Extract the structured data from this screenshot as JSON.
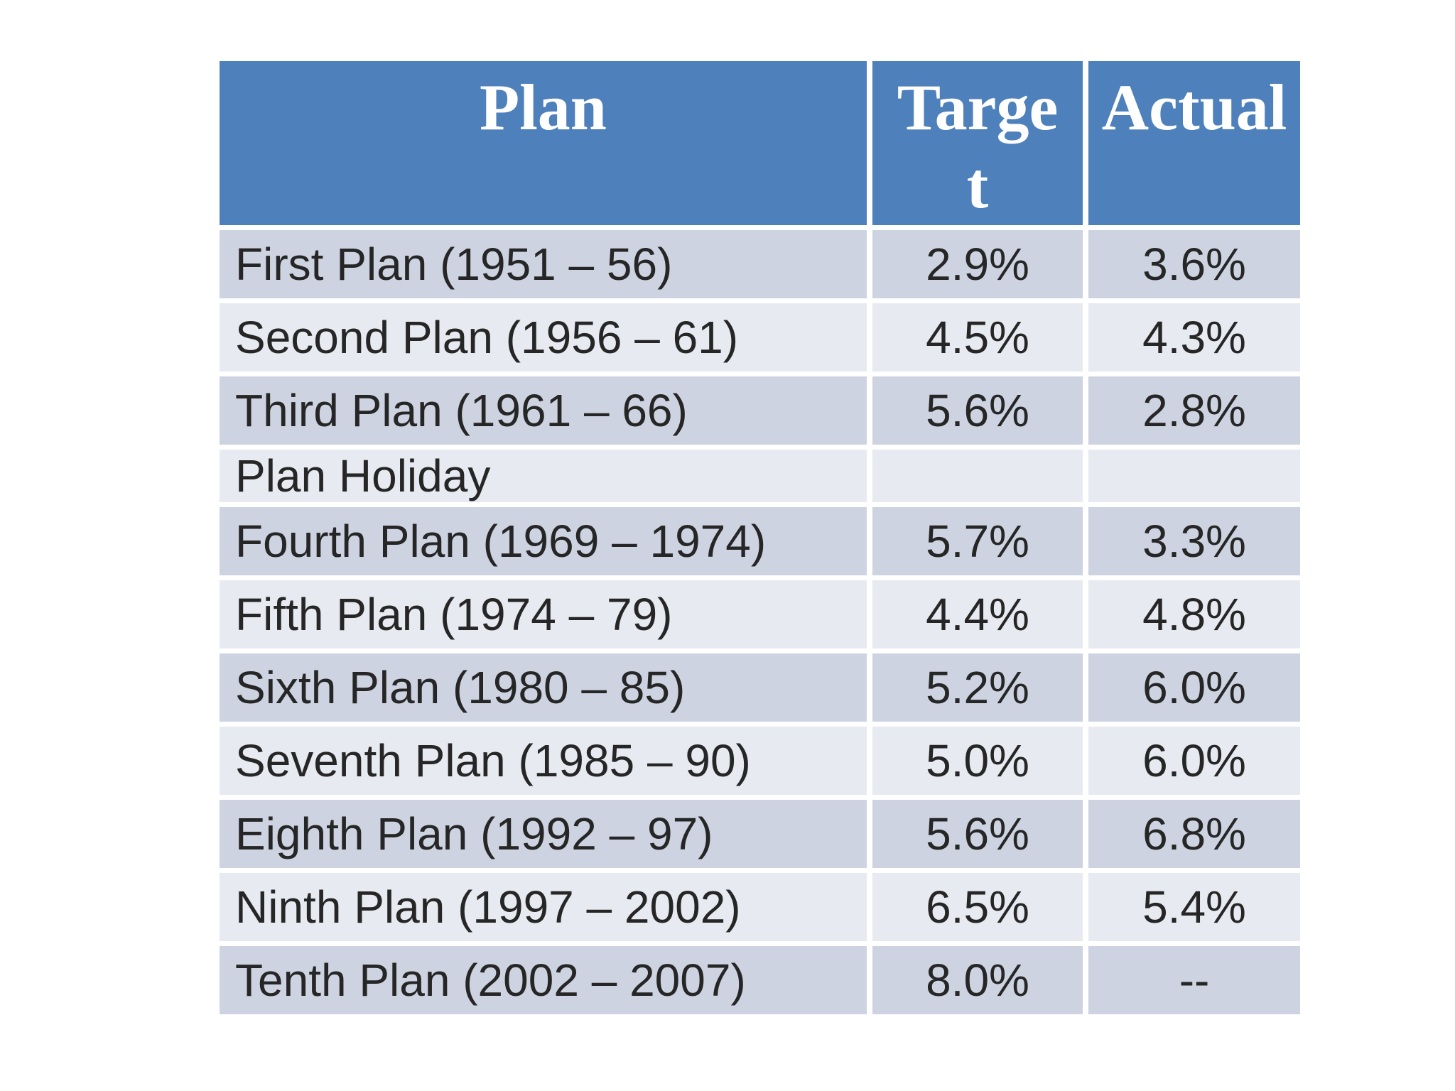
{
  "table": {
    "columns": [
      {
        "key": "plan",
        "label": "Plan"
      },
      {
        "key": "target",
        "label": "Target"
      },
      {
        "key": "actual",
        "label": "Actual"
      }
    ],
    "rows": [
      {
        "plan": "First Plan (1951 – 56)",
        "target": "2.9%",
        "actual": "3.6%",
        "compact": false
      },
      {
        "plan": "Second Plan (1956 – 61)",
        "target": "4.5%",
        "actual": "4.3%",
        "compact": false
      },
      {
        "plan": "Third Plan (1961 – 66)",
        "target": "5.6%",
        "actual": "2.8%",
        "compact": false
      },
      {
        "plan": "Plan Holiday",
        "target": "",
        "actual": "",
        "compact": true
      },
      {
        "plan": "Fourth Plan (1969 – 1974)",
        "target": "5.7%",
        "actual": "3.3%",
        "compact": false
      },
      {
        "plan": "Fifth Plan (1974 – 79)",
        "target": "4.4%",
        "actual": "4.8%",
        "compact": false
      },
      {
        "plan": "Sixth Plan (1980 – 85)",
        "target": "5.2%",
        "actual": "6.0%",
        "compact": false
      },
      {
        "plan": "Seventh Plan (1985 – 90)",
        "target": "5.0%",
        "actual": "6.0%",
        "compact": false
      },
      {
        "plan": "Eighth Plan (1992 – 97)",
        "target": "5.6%",
        "actual": "6.8%",
        "compact": false
      },
      {
        "plan": "Ninth Plan (1997 – 2002)",
        "target": "6.5%",
        "actual": "5.4%",
        "compact": false
      },
      {
        "plan": "Tenth Plan (2002 – 2007)",
        "target": "8.0%",
        "actual": "--",
        "compact": false
      }
    ],
    "colors": {
      "header_bg": "#4E80BC",
      "band_dark": "#CDD3E1",
      "band_light": "#E8EAF1",
      "header_text": "#FFFFFF",
      "body_text": "#262626",
      "background": "#FFFFFF"
    }
  }
}
